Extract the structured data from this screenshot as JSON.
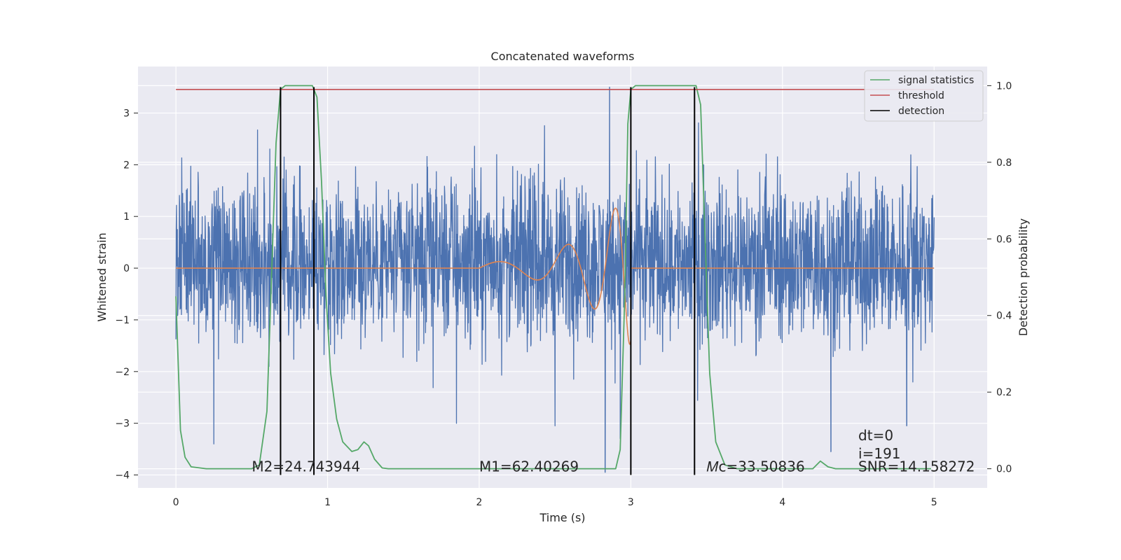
{
  "chart_data": {
    "type": "line",
    "title": "Concatenated waveforms",
    "xlabel": "Time (s)",
    "ylabel": "Whitened strain",
    "y2label": "Detection probability",
    "xlim": [
      -0.25,
      5.35
    ],
    "ylim": [
      -4.25,
      3.9
    ],
    "y2lim": [
      -0.05,
      1.05
    ],
    "xticks": [
      0,
      1,
      2,
      3,
      4,
      5
    ],
    "yticks": [
      -4,
      -3,
      -2,
      -1,
      0,
      1,
      2,
      3
    ],
    "y2ticks": [
      0.0,
      0.2,
      0.4,
      0.6,
      0.8,
      1.0
    ],
    "xtick_labels": [
      "0",
      "1",
      "2",
      "3",
      "4",
      "5"
    ],
    "ytick_labels": [
      "−4",
      "−3",
      "−2",
      "−1",
      "0",
      "1",
      "2",
      "3"
    ],
    "y2tick_labels": [
      "0.0",
      "0.2",
      "0.4",
      "0.6",
      "0.8",
      "1.0"
    ],
    "grid": true,
    "legend_position": "top-right",
    "legend": [
      {
        "label": "signal statistics",
        "color": "#55a868"
      },
      {
        "label": "threshold",
        "color": "#c44e52"
      },
      {
        "label": "detection",
        "color": "#000000"
      }
    ],
    "series": [
      {
        "kind": "noise_strain",
        "color": "#4c72b0",
        "x_range": [
          0,
          5
        ],
        "typical_range": [
          -2.6,
          3.5
        ],
        "notable_spikes": [
          {
            "x": 0.25,
            "y": -3.4
          },
          {
            "x": 1.85,
            "y": -3.0
          },
          {
            "x": 2.5,
            "y": -3.05
          },
          {
            "x": 2.83,
            "y": -3.95
          },
          {
            "x": 2.86,
            "y": 3.5
          },
          {
            "x": 2.93,
            "y": -3.3
          },
          {
            "x": 4.32,
            "y": -3.55
          },
          {
            "x": 4.82,
            "y": -3.05
          }
        ]
      },
      {
        "kind": "injected_signal",
        "color": "#dd8452",
        "x_range": [
          0,
          5
        ],
        "chirp_start": 2.0,
        "chirp_end": 3.0,
        "peak_amplitude": 1.5,
        "baseline": 0
      },
      {
        "name": "signal statistics",
        "color": "#55a868",
        "axis": "right",
        "points": [
          [
            0.0,
            0.45
          ],
          [
            0.03,
            0.1
          ],
          [
            0.06,
            0.03
          ],
          [
            0.1,
            0.005
          ],
          [
            0.2,
            0.0
          ],
          [
            0.5,
            0.0
          ],
          [
            0.55,
            0.01
          ],
          [
            0.6,
            0.15
          ],
          [
            0.63,
            0.5
          ],
          [
            0.66,
            0.85
          ],
          [
            0.69,
            0.99
          ],
          [
            0.72,
            1.0
          ],
          [
            0.9,
            1.0
          ],
          [
            0.93,
            0.97
          ],
          [
            0.96,
            0.75
          ],
          [
            0.99,
            0.45
          ],
          [
            1.02,
            0.25
          ],
          [
            1.06,
            0.13
          ],
          [
            1.1,
            0.07
          ],
          [
            1.16,
            0.045
          ],
          [
            1.2,
            0.05
          ],
          [
            1.24,
            0.07
          ],
          [
            1.27,
            0.06
          ],
          [
            1.31,
            0.025
          ],
          [
            1.36,
            0.002
          ],
          [
            1.4,
            0.0
          ],
          [
            2.9,
            0.0
          ],
          [
            2.93,
            0.05
          ],
          [
            2.96,
            0.45
          ],
          [
            2.98,
            0.9
          ],
          [
            3.0,
            0.99
          ],
          [
            3.03,
            1.0
          ],
          [
            3.43,
            1.0
          ],
          [
            3.46,
            0.95
          ],
          [
            3.49,
            0.6
          ],
          [
            3.52,
            0.25
          ],
          [
            3.56,
            0.07
          ],
          [
            3.62,
            0.01
          ],
          [
            3.7,
            0.0
          ],
          [
            4.2,
            0.0
          ],
          [
            4.25,
            0.02
          ],
          [
            4.3,
            0.005
          ],
          [
            4.35,
            0.0
          ],
          [
            4.98,
            0.0
          ]
        ]
      },
      {
        "name": "threshold",
        "color": "#c44e52",
        "axis": "right",
        "x_range": [
          0,
          5
        ],
        "value": 0.99
      },
      {
        "name": "detection",
        "color": "#000000",
        "x_values": [
          0.69,
          0.91,
          3.0,
          3.42
        ],
        "y_range": [
          -4.0,
          3.5
        ]
      }
    ],
    "annotations": [
      {
        "text": "M2=24.743944",
        "x": 0.5,
        "y": -4.0
      },
      {
        "text": "M1=62.40269",
        "x": 2.0,
        "y": -4.0
      },
      {
        "text": "𝑀c=33.50836",
        "x": 3.5,
        "y": -4.0
      },
      {
        "text": "dt=0",
        "x": 4.5,
        "y": -3.4
      },
      {
        "text": "i=191",
        "x": 4.5,
        "y": -3.75
      },
      {
        "text": "SNR=14.158272",
        "x": 4.5,
        "y": -4.0
      }
    ]
  }
}
